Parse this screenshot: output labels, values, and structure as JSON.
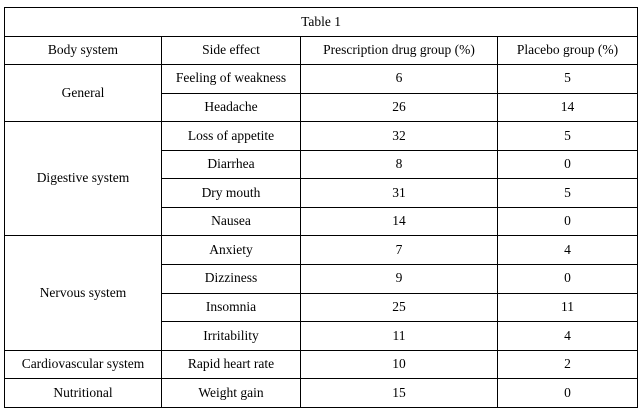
{
  "table": {
    "caption": "Table 1",
    "headers": [
      "Body system",
      "Side effect",
      "Prescription drug group (%)",
      "Placebo group (%)"
    ],
    "groups": [
      {
        "body_system": "General",
        "rows": [
          {
            "side_effect": "Feeling of weakness",
            "drug": "6",
            "placebo": "5"
          },
          {
            "side_effect": "Headache",
            "drug": "26",
            "placebo": "14"
          }
        ]
      },
      {
        "body_system": "Digestive system",
        "rows": [
          {
            "side_effect": "Loss of appetite",
            "drug": "32",
            "placebo": "5"
          },
          {
            "side_effect": "Diarrhea",
            "drug": "8",
            "placebo": "0"
          },
          {
            "side_effect": "Dry mouth",
            "drug": "31",
            "placebo": "5"
          },
          {
            "side_effect": "Nausea",
            "drug": "14",
            "placebo": "0"
          }
        ]
      },
      {
        "body_system": "Nervous system",
        "rows": [
          {
            "side_effect": "Anxiety",
            "drug": "7",
            "placebo": "4"
          },
          {
            "side_effect": "Dizziness",
            "drug": "9",
            "placebo": "0"
          },
          {
            "side_effect": "Insomnia",
            "drug": "25",
            "placebo": "11"
          },
          {
            "side_effect": "Irritability",
            "drug": "11",
            "placebo": "4"
          }
        ]
      },
      {
        "body_system": "Cardiovascular system",
        "rows": [
          {
            "side_effect": "Rapid heart rate",
            "drug": "10",
            "placebo": "2"
          }
        ]
      },
      {
        "body_system": "Nutritional",
        "rows": [
          {
            "side_effect": "Weight gain",
            "drug": "15",
            "placebo": "0"
          }
        ]
      }
    ]
  }
}
